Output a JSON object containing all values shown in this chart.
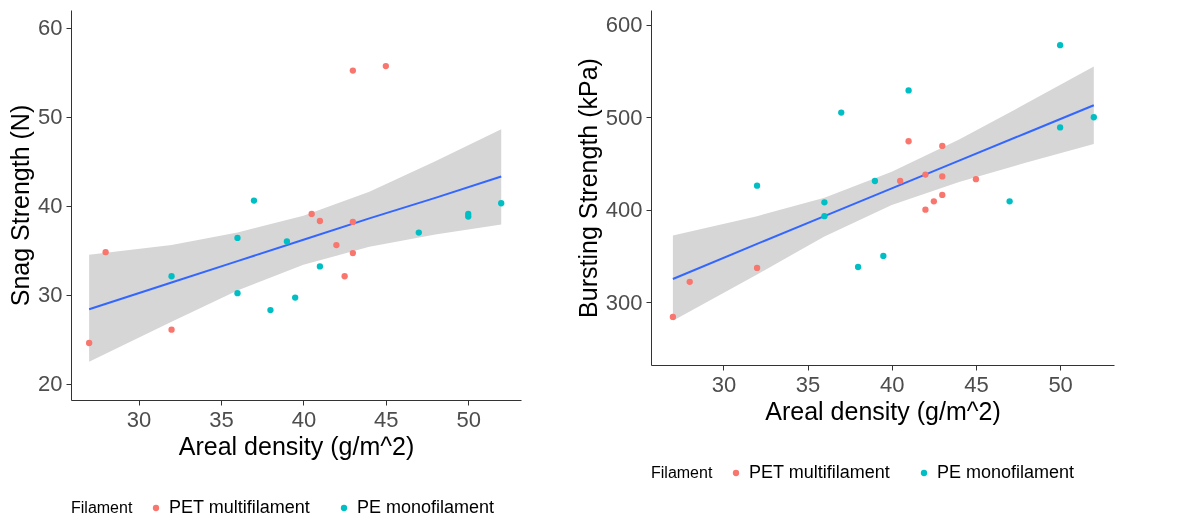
{
  "chart_data": [
    {
      "type": "scatter",
      "xlabel": "Areal density (g/m^2)",
      "ylabel": "Snag Strength (N)",
      "legend_title": "Filament",
      "legend": "bottom",
      "grid": false,
      "xlim": [
        25.9,
        53.2
      ],
      "xticks": [
        30,
        35,
        40,
        45,
        50
      ],
      "ylim": [
        18.2,
        62
      ],
      "yticks": [
        20,
        30,
        40,
        50,
        60
      ],
      "series": [
        {
          "name": "PET multifilament",
          "color": "#f8766d",
          "marker": "circle",
          "x": [
            27,
            28,
            32,
            40.5,
            41,
            42,
            43,
            42.5,
            43,
            43,
            45
          ],
          "values": [
            24.6,
            34.8,
            26.1,
            39.1,
            38.3,
            35.6,
            34.7,
            32.1,
            38.2,
            55.2,
            55.7
          ]
        },
        {
          "name": "PE monofilament",
          "color": "#00bfc4",
          "marker": "circle",
          "x": [
            32,
            36,
            36,
            37,
            38,
            39,
            39.5,
            41,
            47,
            50,
            50,
            52
          ],
          "values": [
            32.1,
            36.4,
            30.2,
            40.6,
            28.3,
            36.0,
            29.7,
            33.2,
            37.0,
            39.1,
            38.8,
            40.3
          ]
        },
        {
          "type": "line",
          "color": "#3366ff",
          "marker": "none",
          "x": [
            27,
            32,
            36,
            40,
            44,
            48,
            52
          ],
          "values": [
            28.4,
            31.4,
            33.8,
            36.2,
            38.6,
            40.9,
            43.3
          ],
          "lower": [
            22.5,
            27.0,
            30.5,
            33.4,
            35.4,
            36.8,
            37.9
          ],
          "upper": [
            34.5,
            35.6,
            37.0,
            38.9,
            41.6,
            45.0,
            48.6
          ]
        }
      ]
    },
    {
      "type": "scatter",
      "xlabel": "Areal density (g/m^2)",
      "ylabel": "Bursting Strength (kPa)",
      "legend_title": "Filament",
      "legend": "bottom",
      "grid": false,
      "xlim": [
        25.7,
        53.2
      ],
      "xticks": [
        30,
        35,
        40,
        45,
        50
      ],
      "ylim": [
        232,
        616
      ],
      "yticks": [
        300,
        400,
        500,
        600
      ],
      "series": [
        {
          "name": "PET multifilament",
          "color": "#f8766d",
          "marker": "circle",
          "x": [
            27,
            28,
            32,
            41,
            40.5,
            42,
            42,
            42.5,
            43,
            43,
            43,
            45
          ],
          "values": [
            284,
            322,
            337,
            474,
            431,
            438,
            400,
            409,
            416,
            436,
            469,
            433
          ]
        },
        {
          "name": "PE monofilament",
          "color": "#00bfc4",
          "marker": "circle",
          "x": [
            32,
            36,
            36,
            37,
            38,
            39,
            39.5,
            41,
            47,
            50,
            50,
            52
          ],
          "values": [
            426,
            408,
            393,
            505,
            338,
            431,
            350,
            529,
            409,
            578,
            489,
            500
          ]
        },
        {
          "type": "line",
          "color": "#3366ff",
          "marker": "none",
          "x": [
            27,
            32,
            36,
            40,
            44,
            48,
            52
          ],
          "values": [
            325,
            363,
            393,
            423,
            453,
            483,
            513
          ],
          "lower": [
            280,
            330,
            371,
            405,
            430,
            451,
            471
          ],
          "upper": [
            372,
            393,
            413,
            441,
            476,
            515,
            555
          ]
        }
      ]
    }
  ]
}
